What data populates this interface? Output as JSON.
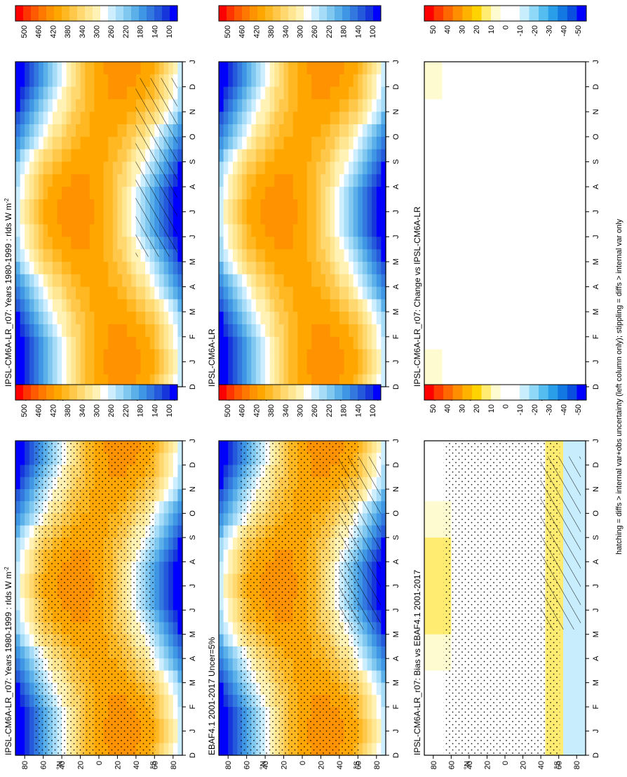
{
  "figure": {
    "footnote": "hatching = diffs > internal var+obs uncertainty (left column only); stippling = diffs > internal var only",
    "colors": {
      "abs_scale": [
        "#ff0000",
        "#ff3500",
        "#ff5a00",
        "#ff7800",
        "#ff9200",
        "#ffa600",
        "#ffb822",
        "#ffc84a",
        "#ffd870",
        "#ffe692",
        "#fff2b4",
        "#ffffff",
        "#cdeefe",
        "#a7dcf8",
        "#80c8f0",
        "#5cb0ea",
        "#3f96e4",
        "#3278df",
        "#2459dc",
        "#1636dc",
        "#0000ff"
      ],
      "diff_scale": [
        "#ff0000",
        "#ff3a00",
        "#ff6800",
        "#ff8f00",
        "#ffb200",
        "#ffd200",
        "#ffec70",
        "#fffbd0",
        "#ffffff",
        "#ffffff",
        "#c8eefe",
        "#8fd8f8",
        "#55bdf0",
        "#2a9ee8",
        "#1478e2",
        "#0a4ee0",
        "#0000ff"
      ]
    },
    "colorbar_ticks": {
      "absolute": [
        "500",
        "460",
        "420",
        "380",
        "340",
        "300",
        "260",
        "220",
        "180",
        "140",
        "100"
      ],
      "difference": [
        "50",
        "40",
        "30",
        "20",
        "10",
        "0",
        "-10",
        "-20",
        "-30",
        "-40",
        "-50"
      ]
    },
    "month_labels": [
      "D",
      "J",
      "F",
      "M",
      "A",
      "M",
      "J",
      "J",
      "A",
      "S",
      "O",
      "N",
      "D",
      "J"
    ],
    "latitude_labels": [
      "80",
      "60",
      "40",
      "20",
      "0",
      "20",
      "40",
      "60",
      "80"
    ]
  },
  "chart_data": [
    {
      "type": "heatmap",
      "title": "IPSL-CM6A-LR_r07: Years 1980-1999 : rlds W m",
      "title_superscript": "-2",
      "x": "month",
      "y": "latitude",
      "ylim": [
        -90,
        90
      ],
      "xlabel": "",
      "ylabel": "",
      "ylabel_hemisphere": {
        "north": "°N",
        "south": "°S"
      },
      "colorbar": {
        "min": 100,
        "max": 500,
        "step": 20
      },
      "stippling": "diffs > internal var only",
      "hatching": "diffs > internal var+obs uncertainty"
    },
    {
      "type": "heatmap",
      "title": "IPSL-CM6A-LR_r07: Years 1980-1999 : rlds W m",
      "title_superscript": "-2",
      "x": "month",
      "y": "latitude",
      "ylim": [
        -90,
        90
      ],
      "ylabel_hemisphere": {
        "north": "°N",
        "south": "°S"
      },
      "colorbar": {
        "min": 100,
        "max": 500,
        "step": 20
      },
      "stippling": "diffs > internal var only"
    },
    {
      "type": "heatmap",
      "title": "EBAF4.1 2001-2017 Uncer=5%",
      "x": "month",
      "y": "latitude",
      "ylim": [
        -90,
        90
      ],
      "ylabel_hemisphere": {
        "north": "°N",
        "south": "°S"
      },
      "colorbar": {
        "min": 100,
        "max": 500,
        "step": 20
      },
      "stippling": "diffs > internal var only",
      "hatching": "diffs > internal var+obs uncertainty"
    },
    {
      "type": "heatmap",
      "title": "IPSL-CM6A-LR",
      "x": "month",
      "y": "latitude",
      "ylim": [
        -90,
        90
      ],
      "ylabel_hemisphere": {
        "north": "°N",
        "south": "°S"
      },
      "colorbar": {
        "min": 100,
        "max": 500,
        "step": 20
      },
      "stippling": "diffs > internal var only"
    },
    {
      "type": "heatmap",
      "title": "IPSL-CM6A-LR_r07: Bias vs EBAF4.1 2001-2017",
      "x": "month",
      "y": "latitude",
      "ylim": [
        -90,
        90
      ],
      "ylabel_hemisphere": {
        "north": "°N",
        "south": "°S"
      },
      "colorbar": {
        "min": -50,
        "max": 50,
        "step": 10
      },
      "stippling": "diffs > internal var only",
      "hatching": "diffs > internal var+obs uncertainty"
    },
    {
      "type": "heatmap",
      "title": "IPSL-CM6A-LR_r07: Change vs IPSL-CM6A-LR",
      "x": "month",
      "y": "latitude",
      "ylim": [
        -90,
        90
      ],
      "ylabel_hemisphere": {
        "north": "°N",
        "south": "°S"
      },
      "colorbar": {
        "min": -50,
        "max": 50,
        "step": 10
      },
      "stippling": "diffs > internal var only"
    }
  ]
}
